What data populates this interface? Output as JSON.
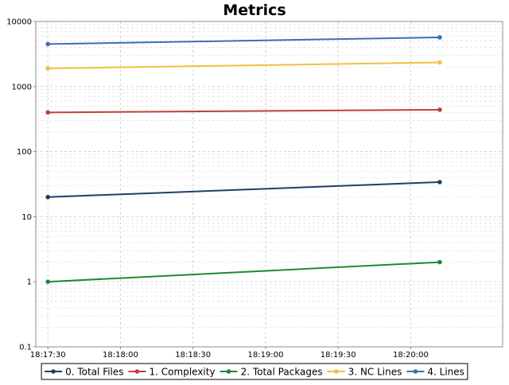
{
  "chart_data": {
    "type": "line",
    "title": "Metrics",
    "xlabel": "",
    "ylabel": "",
    "y_scale": "log",
    "ylim": [
      0.1,
      10000
    ],
    "y_ticks": [
      {
        "value": 0.1,
        "label": "0.1"
      },
      {
        "value": 1,
        "label": "1"
      },
      {
        "value": 10,
        "label": "10"
      },
      {
        "value": 100,
        "label": "100"
      },
      {
        "value": 1000,
        "label": "1000"
      },
      {
        "value": 10000,
        "label": "10000"
      }
    ],
    "xlim": [
      "18:17:25",
      "18:20:38"
    ],
    "x_ticks": [
      "18:17:30",
      "18:18:00",
      "18:18:30",
      "18:19:00",
      "18:19:30",
      "18:20:00"
    ],
    "x": [
      "18:17:30",
      "18:20:12"
    ],
    "grid": true,
    "legend_position": "bottom",
    "series": [
      {
        "name": "0. Total Files",
        "color": "#1f3f68",
        "values": [
          20,
          34
        ]
      },
      {
        "name": "1. Complexity",
        "color": "#c0403a",
        "values": [
          400,
          440
        ]
      },
      {
        "name": "2. Total Packages",
        "color": "#1f8a2f",
        "values": [
          1,
          2
        ]
      },
      {
        "name": "3. NC Lines",
        "color": "#f0c040",
        "values": [
          1900,
          2350
        ]
      },
      {
        "name": "4. Lines",
        "color": "#3a6fb0",
        "values": [
          4500,
          5700
        ]
      }
    ]
  }
}
